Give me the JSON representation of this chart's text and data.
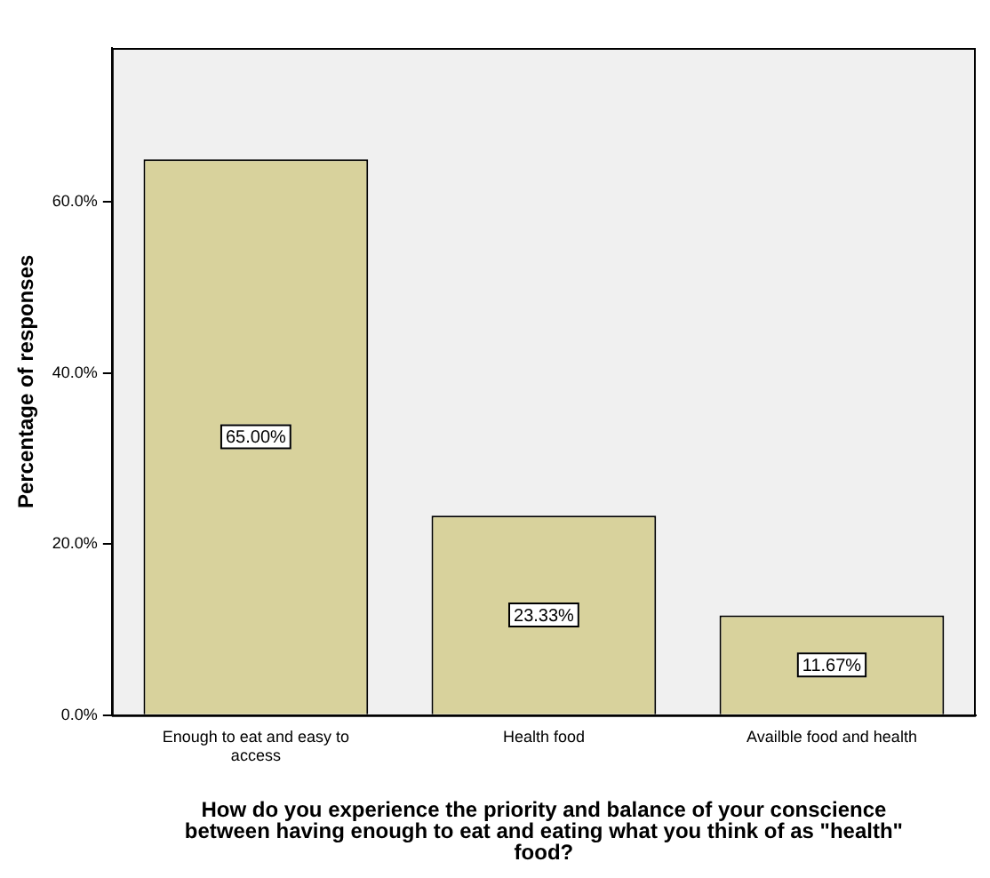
{
  "chart_data": {
    "type": "bar",
    "xlabel": "How do you experience the priority and balance of your conscience between having enough to eat and eating what you think of as \"health\" food?",
    "ylabel": "Percentage of responses",
    "categories": [
      "Enough to eat and easy to access",
      "Health food",
      "Availble food and health"
    ],
    "values": [
      65,
      23.33,
      11.67
    ],
    "color": "#d8d29c",
    "value_labels": [
      "65.00%",
      "23.33%",
      "11.67%"
    ],
    "ylim": [
      0,
      78
    ],
    "yticks": [
      {
        "value": 0,
        "label": "0.0%"
      },
      {
        "value": 20,
        "label": "20.0%"
      },
      {
        "value": 40,
        "label": "40.0%"
      },
      {
        "value": 60,
        "label": "60.0%"
      }
    ],
    "grid": false,
    "legend": false
  }
}
